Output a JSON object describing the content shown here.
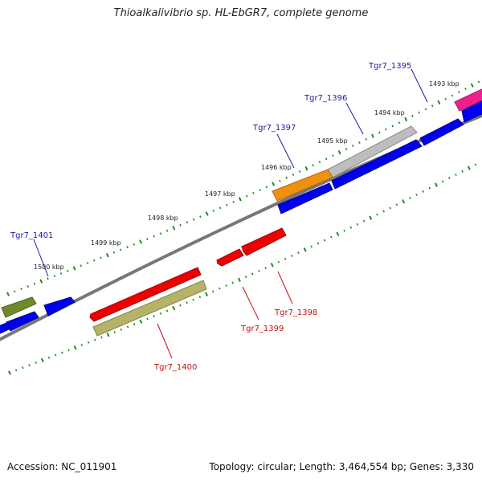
{
  "title": "Thioalkalivibrio sp. HL-EbGR7, complete genome",
  "footer": {
    "accession": "Accession: NC_011901",
    "summary": "Topology: circular; Length: 3,464,554 bp; Genes: 3,330"
  },
  "kbp_labels": [
    "1493 kbp",
    "1494 kbp",
    "1495 kbp",
    "1496 kbp",
    "1497 kbp",
    "1498 kbp",
    "1499 kbp",
    "1500 kbp"
  ],
  "gene_labels": {
    "forward": [
      "Tgr7_1395",
      "Tgr7_1396",
      "Tgr7_1397",
      "Tgr7_1401"
    ],
    "reverse": [
      "Tgr7_1398",
      "Tgr7_1399",
      "Tgr7_1400"
    ]
  },
  "colors": {
    "backbone": "#777777",
    "tick": "#1e8a1e",
    "cds_forward": "#0000ee",
    "cds_reverse": "#ee0000",
    "gene_gray": "#bdbdbd",
    "gene_orange": "#f0900f",
    "gene_magenta": "#ee2090",
    "gene_olive": "#6f8a2a",
    "gene_khaki": "#b5b26a",
    "label_forward": "#1a1aaa",
    "label_reverse": "#c41010"
  }
}
